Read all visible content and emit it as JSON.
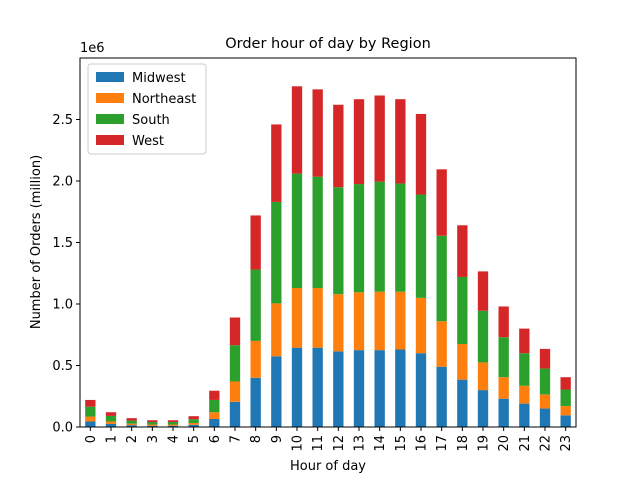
{
  "chart_data": {
    "type": "bar",
    "stacked": true,
    "title": "Order hour of day by Region",
    "xlabel": "Hour of day",
    "ylabel": "Number of Orders (million)",
    "y_offset_text": "1e6",
    "ylim": [
      0,
      3000000
    ],
    "yticks": [
      0,
      500000,
      1000000,
      1500000,
      2000000,
      2500000
    ],
    "ytick_labels": [
      "0.0",
      "0.5",
      "1.0",
      "1.5",
      "2.0",
      "2.5"
    ],
    "categories": [
      "0",
      "1",
      "2",
      "3",
      "4",
      "5",
      "6",
      "7",
      "8",
      "9",
      "10",
      "11",
      "12",
      "13",
      "14",
      "15",
      "16",
      "17",
      "18",
      "19",
      "20",
      "21",
      "22",
      "23"
    ],
    "legend_position": "upper left",
    "grid": false,
    "series": [
      {
        "name": "Midwest",
        "color": "#1f77b4",
        "values": [
          45000,
          25000,
          15000,
          10000,
          10000,
          18000,
          65000,
          205000,
          400000,
          575000,
          645000,
          645000,
          615000,
          625000,
          625000,
          630000,
          600000,
          490000,
          385000,
          300000,
          230000,
          190000,
          150000,
          95000
        ]
      },
      {
        "name": "Northeast",
        "color": "#ff7f0e",
        "values": [
          40000,
          20000,
          12000,
          10000,
          10000,
          15000,
          55000,
          165000,
          300000,
          430000,
          485000,
          485000,
          465000,
          470000,
          475000,
          470000,
          450000,
          370000,
          290000,
          225000,
          175000,
          145000,
          115000,
          75000
        ]
      },
      {
        "name": "South",
        "color": "#2ca02c",
        "values": [
          80000,
          45000,
          25000,
          20000,
          20000,
          30000,
          100000,
          295000,
          580000,
          825000,
          930000,
          905000,
          870000,
          880000,
          895000,
          880000,
          840000,
          695000,
          545000,
          420000,
          325000,
          265000,
          210000,
          135000
        ]
      },
      {
        "name": "West",
        "color": "#d62728",
        "values": [
          55000,
          30000,
          20000,
          15000,
          15000,
          25000,
          75000,
          225000,
          440000,
          630000,
          710000,
          710000,
          670000,
          690000,
          700000,
          685000,
          655000,
          540000,
          420000,
          320000,
          250000,
          200000,
          160000,
          100000
        ]
      }
    ]
  }
}
